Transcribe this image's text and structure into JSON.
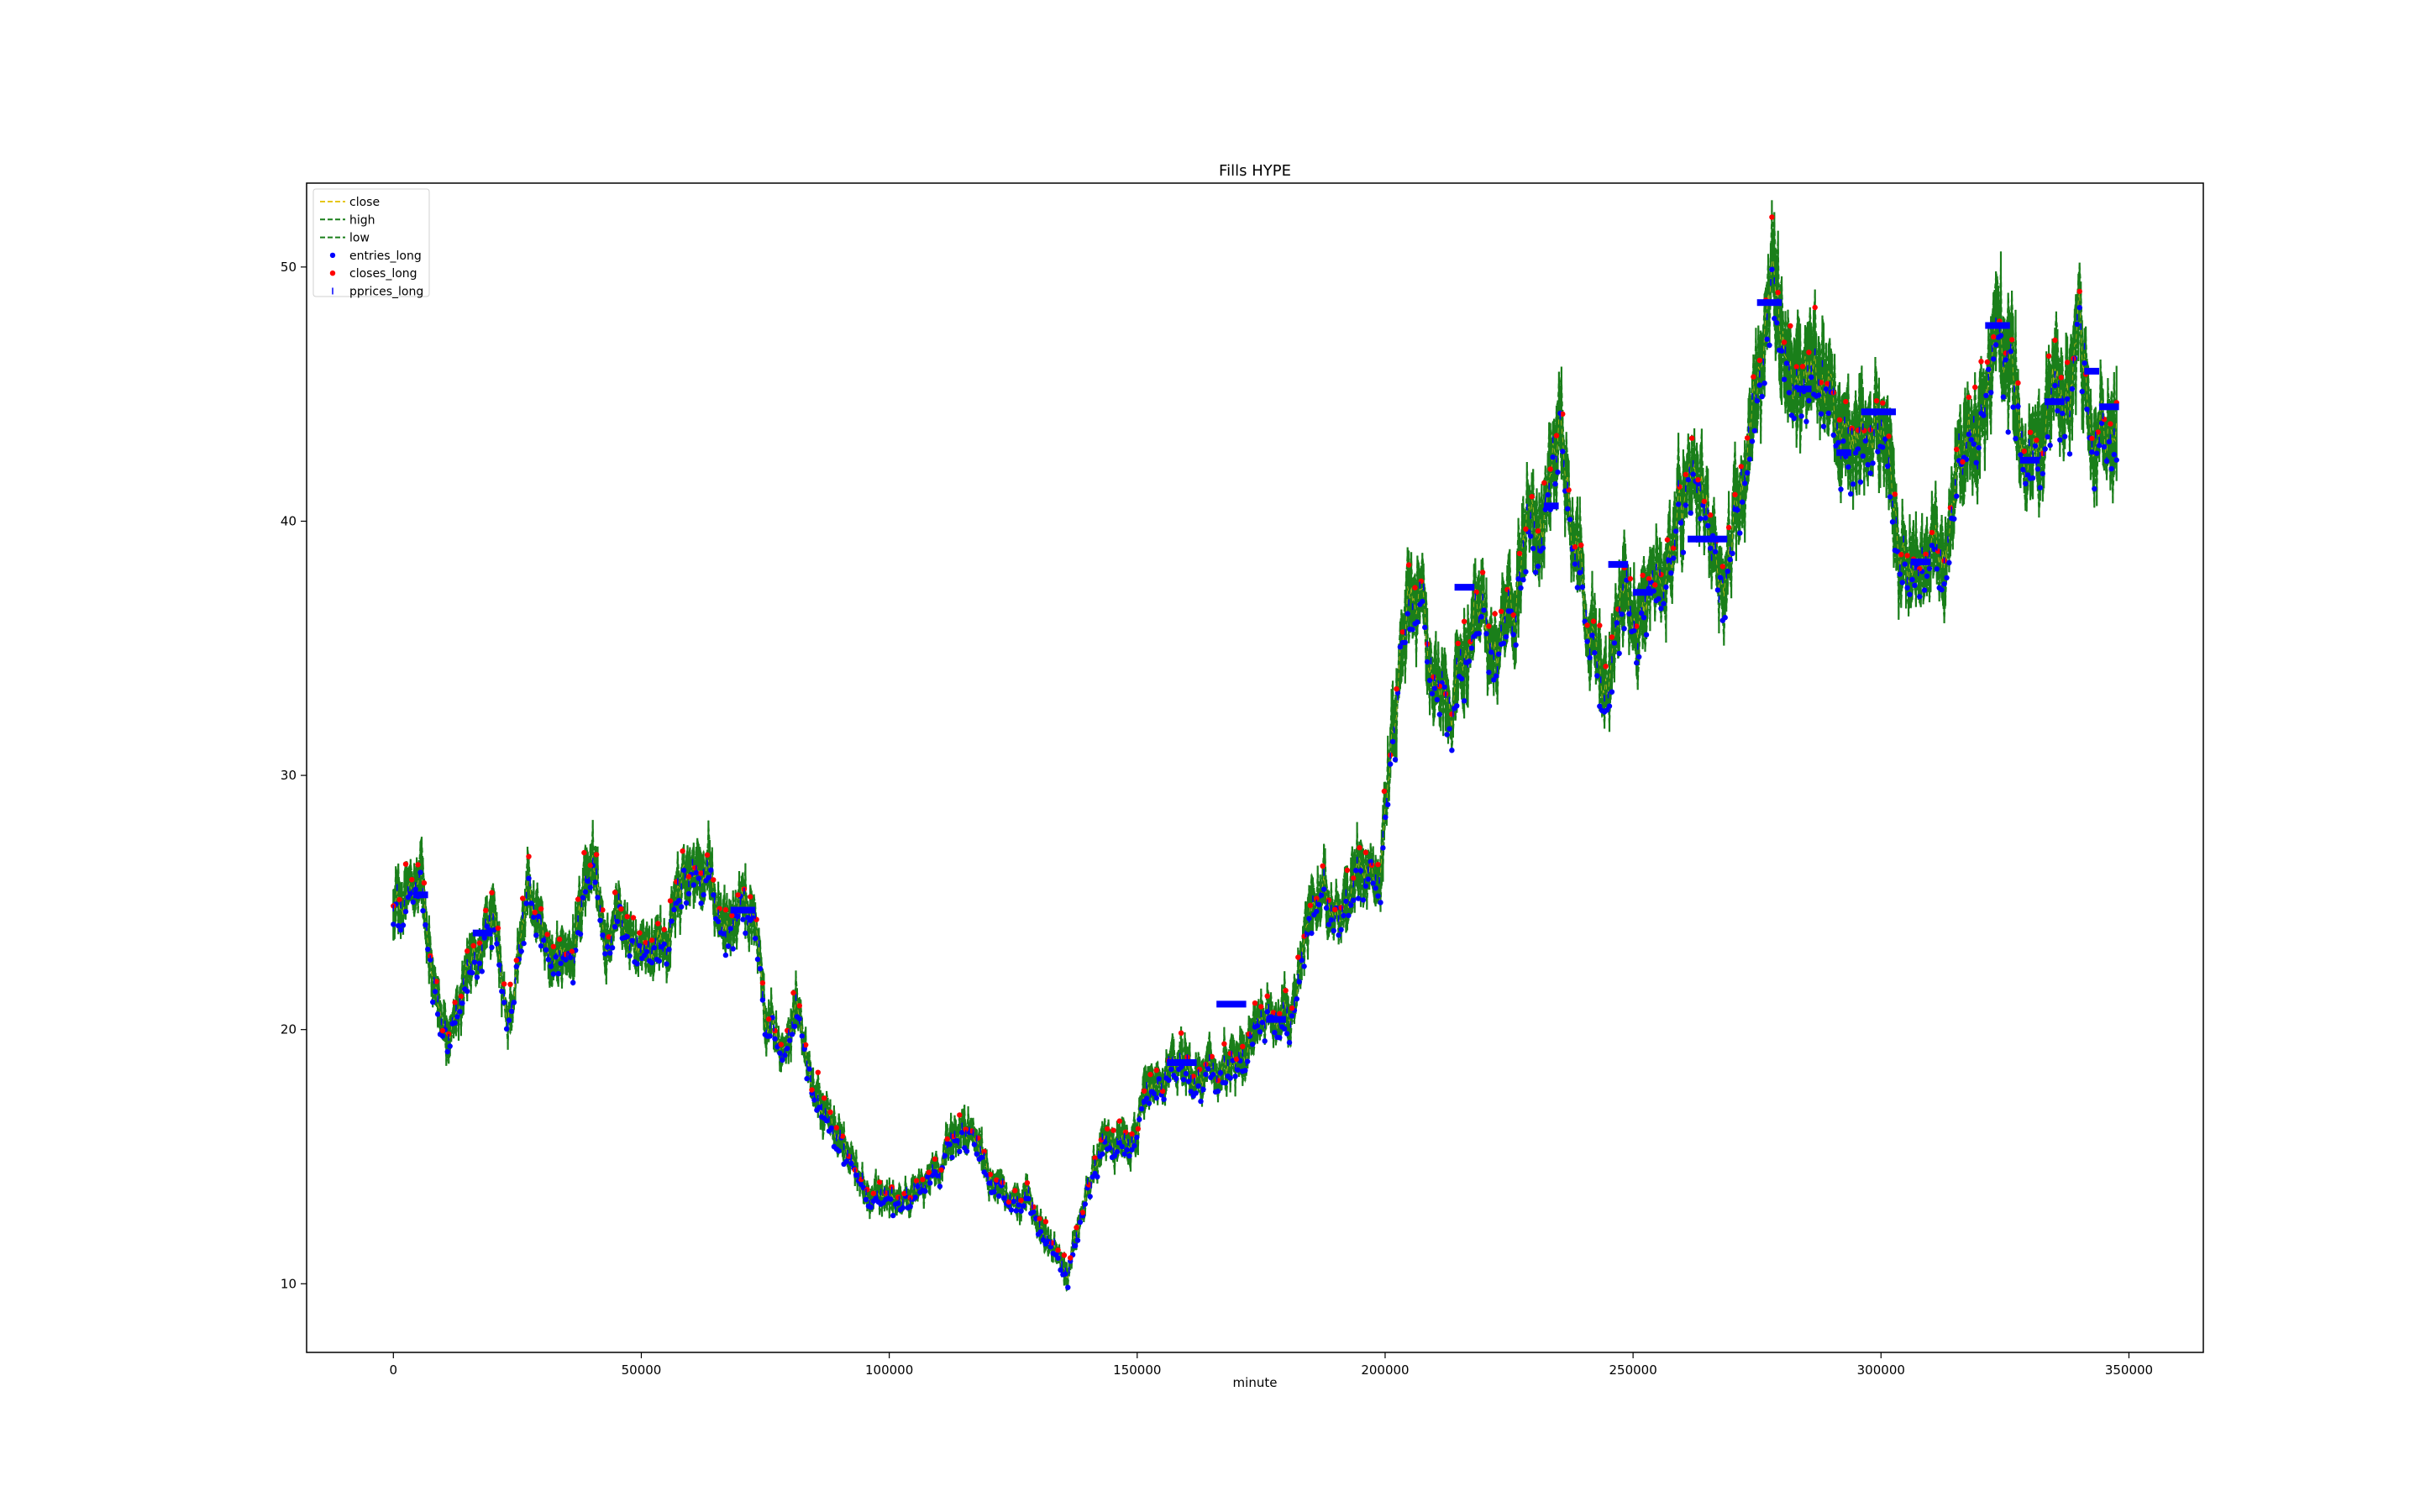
{
  "chart_data": {
    "type": "line",
    "title": "Fills HYPE",
    "xlabel": "minute",
    "ylabel": "",
    "xlim": [
      -17500,
      365000
    ],
    "ylim": [
      7.3,
      53.3
    ],
    "x_ticks": [
      0,
      50000,
      100000,
      150000,
      200000,
      250000,
      300000,
      350000
    ],
    "x_tick_labels": [
      "0",
      "50000",
      "100000",
      "150000",
      "200000",
      "250000",
      "300000",
      "350000"
    ],
    "y_ticks": [
      10,
      20,
      30,
      40,
      50
    ],
    "y_tick_labels": [
      "10",
      "20",
      "30",
      "40",
      "50"
    ],
    "legend_position": "top-left",
    "legend": [
      {
        "label": "close",
        "kind": "dashed-line",
        "color": "#e6c619"
      },
      {
        "label": "high",
        "kind": "dashed-line",
        "color": "#1a7f1a"
      },
      {
        "label": "low",
        "kind": "dashed-line",
        "color": "#1a7f1a"
      },
      {
        "label": "entries_long",
        "kind": "dot",
        "color": "#0000ff"
      },
      {
        "label": "closes_long",
        "kind": "dot",
        "color": "#ff0000"
      },
      {
        "label": "pprices_long",
        "kind": "tick",
        "color": "#0000ff"
      }
    ],
    "series": [
      {
        "name": "close",
        "x": [
          0,
          3000,
          6000,
          8000,
          10000,
          13000,
          16000,
          20000,
          23000,
          27000,
          30000,
          35000,
          38000,
          40000,
          43000,
          45000,
          48000,
          52000,
          55000,
          60000,
          64000,
          67000,
          70000,
          73000,
          75000,
          78000,
          82000,
          85000,
          88000,
          92000,
          95000,
          98000,
          100000,
          103000,
          106000,
          110000,
          113000,
          116000,
          120000,
          124000,
          128000,
          131000,
          134000,
          136000,
          140000,
          144000,
          148000,
          152000,
          156000,
          160000,
          165000,
          170000,
          175000,
          178000,
          181000,
          184000,
          188000,
          192000,
          196000,
          199000,
          201000,
          203000,
          205000,
          208000,
          211000,
          215000,
          218000,
          222000,
          226000,
          229000,
          232000,
          235000,
          238000,
          241000,
          243000,
          245000,
          248000,
          252000,
          256000,
          260000,
          263000,
          266000,
          269000,
          272000,
          275000,
          278000,
          281000,
          285000,
          289000,
          293000,
          297000,
          300000,
          302000,
          305000,
          309000,
          313000,
          317000,
          320000,
          323000,
          326000,
          329000,
          332000,
          335000,
          338000,
          340000,
          342000,
          345000,
          347500
        ],
        "values": [
          24.5,
          25.5,
          25.8,
          22.0,
          20.5,
          20.8,
          23.0,
          23.8,
          20.5,
          25.0,
          23.5,
          22.5,
          24.0,
          27.0,
          22.0,
          25.5,
          24.0,
          23.0,
          24.0,
          26.5,
          26.0,
          24.0,
          24.5,
          24.5,
          20.0,
          19.5,
          20.0,
          17.0,
          16.0,
          15.0,
          13.5,
          14.0,
          13.0,
          13.5,
          13.5,
          14.5,
          16.0,
          16.5,
          14.5,
          13.0,
          13.5,
          12.0,
          11.5,
          10.5,
          13.5,
          15.5,
          16.0,
          17.0,
          18.0,
          18.5,
          18.0,
          18.5,
          20.5,
          21.0,
          20.5,
          24.5,
          25.0,
          25.5,
          27.0,
          26.5,
          31.0,
          35.0,
          38.5,
          36.0,
          32.5,
          33.0,
          37.0,
          34.5,
          36.0,
          41.5,
          40.0,
          44.5,
          40.5,
          37.0,
          34.0,
          33.5,
          37.0,
          37.0,
          38.5,
          40.0,
          39.5,
          39.0,
          38.5,
          42.0,
          46.0,
          48.5,
          46.5,
          45.5,
          46.0,
          43.5,
          44.0,
          44.0,
          40.5,
          37.5,
          38.0,
          38.5,
          43.5,
          44.5,
          47.5,
          46.0,
          42.5,
          42.5,
          45.0,
          45.0,
          50.0,
          45.5,
          44.5,
          44.5
        ]
      }
    ],
    "plateaus_long": [
      {
        "x_start": 4000,
        "x_end": 7000,
        "y": 25.3
      },
      {
        "x_start": 16000,
        "x_end": 20000,
        "y": 23.8
      },
      {
        "x_start": 68000,
        "x_end": 73000,
        "y": 24.7
      },
      {
        "x_start": 156000,
        "x_end": 162000,
        "y": 18.7
      },
      {
        "x_start": 166000,
        "x_end": 172000,
        "y": 21.0
      },
      {
        "x_start": 176000,
        "x_end": 180000,
        "y": 20.4
      },
      {
        "x_start": 214000,
        "x_end": 218000,
        "y": 37.4
      },
      {
        "x_start": 232000,
        "x_end": 235000,
        "y": 40.6
      },
      {
        "x_start": 245000,
        "x_end": 249000,
        "y": 38.3
      },
      {
        "x_start": 250000,
        "x_end": 254000,
        "y": 37.2
      },
      {
        "x_start": 261000,
        "x_end": 269000,
        "y": 39.3
      },
      {
        "x_start": 275000,
        "x_end": 280000,
        "y": 48.6
      },
      {
        "x_start": 283000,
        "x_end": 286000,
        "y": 45.2
      },
      {
        "x_start": 291000,
        "x_end": 294000,
        "y": 42.7
      },
      {
        "x_start": 296000,
        "x_end": 303000,
        "y": 44.3
      },
      {
        "x_start": 306000,
        "x_end": 310000,
        "y": 38.4
      },
      {
        "x_start": 321000,
        "x_end": 326000,
        "y": 47.7
      },
      {
        "x_start": 328000,
        "x_end": 332000,
        "y": 42.4
      },
      {
        "x_start": 333000,
        "x_end": 337000,
        "y": 44.7
      },
      {
        "x_start": 341000,
        "x_end": 344000,
        "y": 45.9
      },
      {
        "x_start": 344000,
        "x_end": 348000,
        "y": 44.5
      }
    ]
  }
}
